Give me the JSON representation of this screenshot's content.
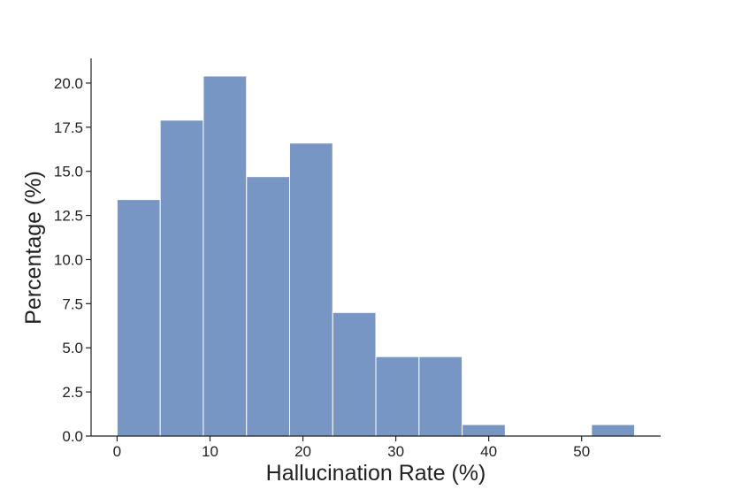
{
  "chart_data": {
    "type": "bar",
    "title": "",
    "xlabel": "Hallucination Rate (%)",
    "ylabel": "Percentage (%)",
    "bin_edges": [
      0,
      4.64,
      9.28,
      13.93,
      18.57,
      23.21,
      27.85,
      32.5,
      37.14,
      41.78,
      46.42,
      51.06,
      55.7
    ],
    "values": [
      13.4,
      17.9,
      20.4,
      14.7,
      16.6,
      7.0,
      4.5,
      4.5,
      0.65,
      0,
      0,
      0.65
    ],
    "xlim": [
      -2.8,
      58.5
    ],
    "ylim": [
      0,
      21.4
    ],
    "xticks": [
      0,
      10,
      20,
      30,
      40,
      50
    ],
    "xtick_labels": [
      "0",
      "10",
      "20",
      "30",
      "40",
      "50"
    ],
    "yticks": [
      0,
      2.5,
      5,
      7.5,
      10,
      12.5,
      15,
      17.5,
      20
    ],
    "ytick_labels": [
      "0.0",
      "2.5",
      "5.0",
      "7.5",
      "10.0",
      "12.5",
      "15.0",
      "17.5",
      "20.0"
    ],
    "bar_color": "#7896c4",
    "bar_edge_color": "#ffffff",
    "axis_color": "#222222",
    "grid": false,
    "legend": "none"
  }
}
